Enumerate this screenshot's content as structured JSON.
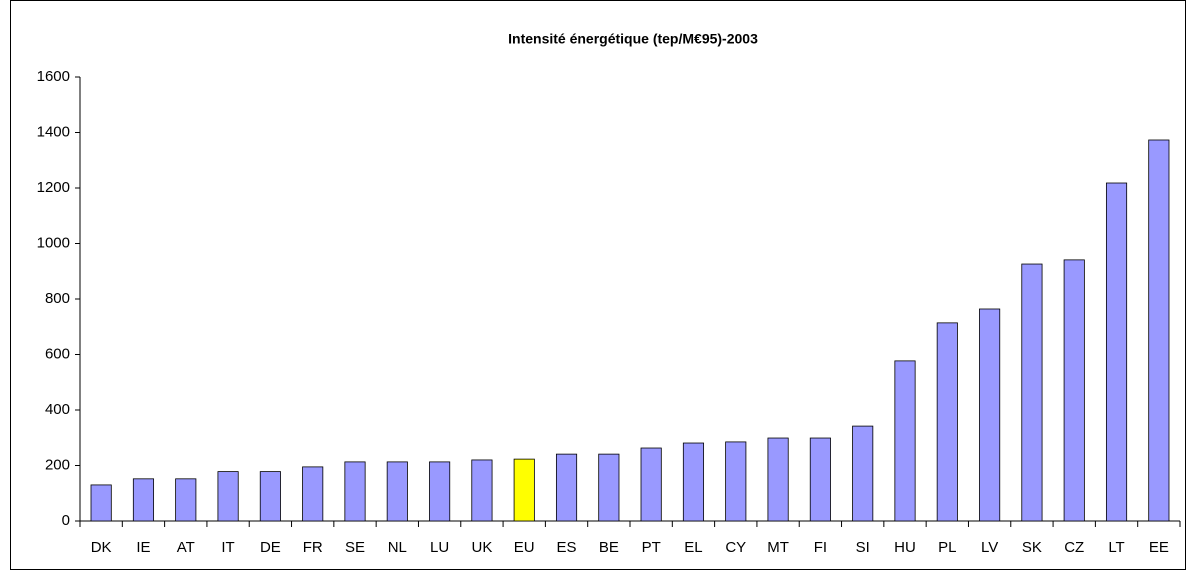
{
  "chart_data": {
    "type": "bar",
    "title": "Intensité énergétique (tep/M€95)-2003",
    "categories": [
      "DK",
      "IE",
      "AT",
      "IT",
      "DE",
      "FR",
      "SE",
      "NL",
      "LU",
      "UK",
      "EU",
      "ES",
      "BE",
      "PT",
      "EL",
      "CY",
      "MT",
      "FI",
      "SI",
      "HU",
      "PL",
      "LV",
      "SK",
      "CZ",
      "LT",
      "EE"
    ],
    "values": [
      130,
      152,
      152,
      178,
      178,
      195,
      213,
      213,
      213,
      220,
      223,
      241,
      241,
      263,
      281,
      285,
      299,
      299,
      342,
      577,
      714,
      764,
      926,
      941,
      1218,
      1373
    ],
    "colors": [
      "#9999ff",
      "#9999ff",
      "#9999ff",
      "#9999ff",
      "#9999ff",
      "#9999ff",
      "#9999ff",
      "#9999ff",
      "#9999ff",
      "#9999ff",
      "#ffff00",
      "#9999ff",
      "#9999ff",
      "#9999ff",
      "#9999ff",
      "#9999ff",
      "#9999ff",
      "#9999ff",
      "#9999ff",
      "#9999ff",
      "#9999ff",
      "#9999ff",
      "#9999ff",
      "#9999ff",
      "#9999ff",
      "#9999ff"
    ],
    "ylim": [
      0,
      1600
    ],
    "yticks": [
      0,
      200,
      400,
      600,
      800,
      1000,
      1200,
      1400,
      1600
    ],
    "grid": false
  }
}
